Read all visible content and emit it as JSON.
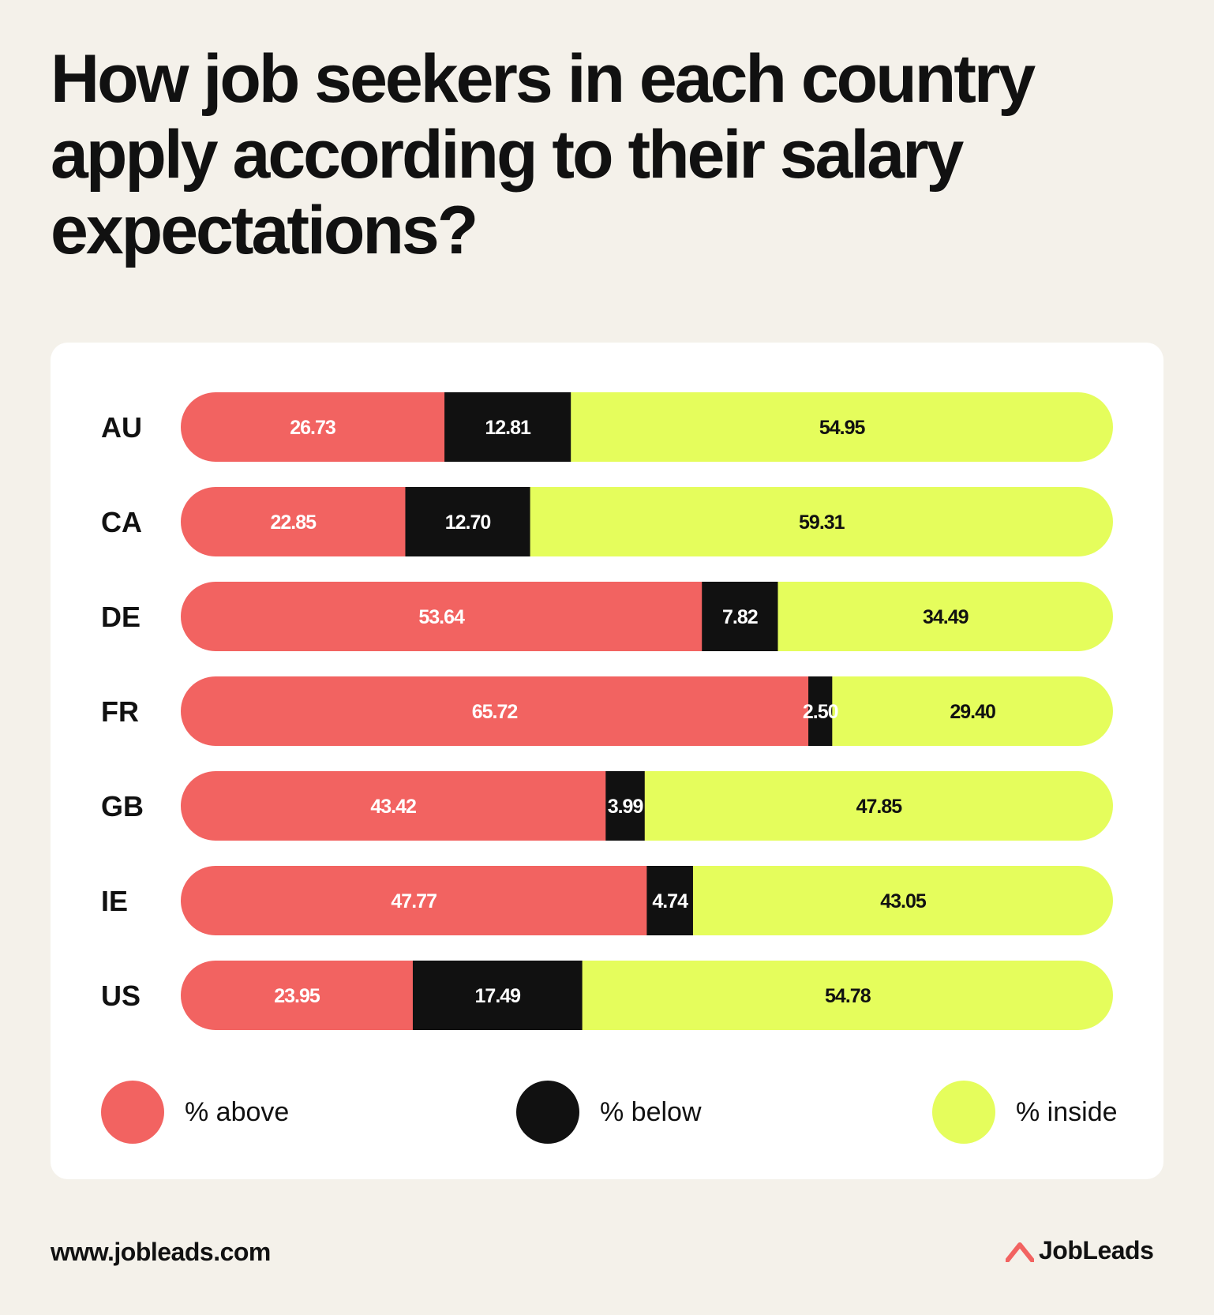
{
  "title": "How job seekers in each country apply according to their salary expectations?",
  "colors": {
    "above": "#f26361",
    "below": "#111111",
    "inside": "#e5fd5c"
  },
  "chart_data": {
    "type": "bar",
    "orientation": "horizontal",
    "stacked": true,
    "categories": [
      "AU",
      "CA",
      "DE",
      "FR",
      "GB",
      "IE",
      "US"
    ],
    "series": [
      {
        "name": "% above",
        "values": [
          "26.73",
          "22.85",
          "53.64",
          "65.72",
          "43.42",
          "47.77",
          "23.95"
        ]
      },
      {
        "name": "% below",
        "values": [
          "12.81",
          "12.70",
          "7.82",
          "2.50",
          "3.99",
          "4.74",
          "17.49"
        ]
      },
      {
        "name": "% inside",
        "values": [
          "54.95",
          "59.31",
          "34.49",
          "29.40",
          "47.85",
          "43.05",
          "54.78"
        ]
      }
    ],
    "legend": "bottom"
  },
  "footer": {
    "url": "www.jobleads.com",
    "brand": "JobLeads"
  }
}
